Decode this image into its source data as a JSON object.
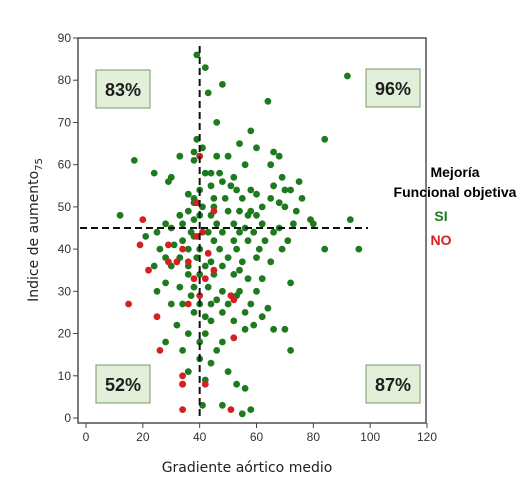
{
  "chart_data": {
    "type": "scatter",
    "xlabel": "Gradiente aórtico medio",
    "ylabel": "Indice de aumento",
    "ylabel_sub": "75",
    "xlim": [
      0,
      120
    ],
    "ylim": [
      0,
      90
    ],
    "xticks": [
      "0",
      "20",
      "40",
      "60",
      "80",
      "100",
      "120"
    ],
    "yticks": [
      "0",
      "10",
      "20",
      "30",
      "40",
      "50",
      "60",
      "70",
      "80",
      "90"
    ],
    "reference_lines": {
      "x": 40,
      "y": 45
    },
    "quadrant_labels": {
      "top_left": "83%",
      "top_right": "96%",
      "bottom_left": "52%",
      "bottom_right": "87%"
    },
    "legend": {
      "title_line1": "Mejoría",
      "title_line2": "Funcional objetiva",
      "items": [
        {
          "label": "SI",
          "color": "#1e7a1e"
        },
        {
          "label": "NO",
          "color": "#d42020"
        }
      ]
    },
    "colors": {
      "quadrant_box_fill": "#e2efd9",
      "quadrant_box_border": "#7a9a6a"
    },
    "series": [
      {
        "name": "SI",
        "color": "#1e7a1e",
        "points": [
          [
            39,
            86
          ],
          [
            42,
            83
          ],
          [
            48,
            79
          ],
          [
            43,
            77
          ],
          [
            64,
            75
          ],
          [
            92,
            81
          ],
          [
            46,
            70
          ],
          [
            39,
            66
          ],
          [
            41,
            64
          ],
          [
            38,
            63
          ],
          [
            38,
            61
          ],
          [
            17,
            61
          ],
          [
            33,
            62
          ],
          [
            46,
            62
          ],
          [
            50,
            62
          ],
          [
            58,
            68
          ],
          [
            54,
            65
          ],
          [
            60,
            64
          ],
          [
            66,
            63
          ],
          [
            68,
            62
          ],
          [
            84,
            66
          ],
          [
            24,
            58
          ],
          [
            29,
            56
          ],
          [
            30,
            57
          ],
          [
            42,
            58
          ],
          [
            44,
            58
          ],
          [
            47,
            58
          ],
          [
            48,
            56
          ],
          [
            52,
            57
          ],
          [
            56,
            60
          ],
          [
            65,
            60
          ],
          [
            69,
            57
          ],
          [
            75,
            56
          ],
          [
            40,
            54
          ],
          [
            44,
            55
          ],
          [
            51,
            55
          ],
          [
            53,
            54
          ],
          [
            58,
            54
          ],
          [
            66,
            55
          ],
          [
            70,
            54
          ],
          [
            72,
            54
          ],
          [
            76,
            52
          ],
          [
            36,
            53
          ],
          [
            38,
            52
          ],
          [
            45,
            52
          ],
          [
            49,
            52
          ],
          [
            55,
            52
          ],
          [
            60,
            53
          ],
          [
            65,
            52
          ],
          [
            68,
            51
          ],
          [
            38,
            51
          ],
          [
            41,
            50
          ],
          [
            45,
            50
          ],
          [
            50,
            49
          ],
          [
            54,
            49
          ],
          [
            58,
            49
          ],
          [
            62,
            50
          ],
          [
            70,
            50
          ],
          [
            74,
            49
          ],
          [
            12,
            48
          ],
          [
            33,
            48
          ],
          [
            36,
            49
          ],
          [
            40,
            48
          ],
          [
            44,
            48
          ],
          [
            57,
            48
          ],
          [
            60,
            48
          ],
          [
            79,
            47
          ],
          [
            93,
            47
          ],
          [
            28,
            46
          ],
          [
            34,
            46
          ],
          [
            38,
            47
          ],
          [
            46,
            46
          ],
          [
            52,
            46
          ],
          [
            56,
            45
          ],
          [
            62,
            46
          ],
          [
            68,
            45
          ],
          [
            73,
            46
          ],
          [
            80,
            46
          ],
          [
            25,
            44
          ],
          [
            30,
            45
          ],
          [
            37,
            44
          ],
          [
            43,
            44
          ],
          [
            48,
            44
          ],
          [
            54,
            44
          ],
          [
            59,
            44
          ],
          [
            66,
            44
          ],
          [
            21,
            43
          ],
          [
            34,
            42
          ],
          [
            38,
            43
          ],
          [
            45,
            42
          ],
          [
            52,
            42
          ],
          [
            57,
            42
          ],
          [
            63,
            42
          ],
          [
            71,
            42
          ],
          [
            84,
            40
          ],
          [
            96,
            40
          ],
          [
            26,
            40
          ],
          [
            31,
            41
          ],
          [
            36,
            40
          ],
          [
            40,
            40
          ],
          [
            47,
            40
          ],
          [
            53,
            40
          ],
          [
            61,
            40
          ],
          [
            69,
            40
          ],
          [
            28,
            38
          ],
          [
            33,
            38
          ],
          [
            39,
            38
          ],
          [
            44,
            37
          ],
          [
            50,
            38
          ],
          [
            55,
            37
          ],
          [
            60,
            38
          ],
          [
            65,
            37
          ],
          [
            24,
            36
          ],
          [
            30,
            36
          ],
          [
            36,
            36
          ],
          [
            42,
            36
          ],
          [
            48,
            36
          ],
          [
            54,
            35
          ],
          [
            36,
            34
          ],
          [
            40,
            34
          ],
          [
            45,
            34
          ],
          [
            52,
            34
          ],
          [
            57,
            33
          ],
          [
            62,
            33
          ],
          [
            28,
            32
          ],
          [
            33,
            31
          ],
          [
            38,
            31
          ],
          [
            43,
            31
          ],
          [
            48,
            30
          ],
          [
            54,
            30
          ],
          [
            60,
            30
          ],
          [
            72,
            32
          ],
          [
            25,
            30
          ],
          [
            37,
            29
          ],
          [
            46,
            28
          ],
          [
            53,
            29
          ],
          [
            30,
            27
          ],
          [
            34,
            27
          ],
          [
            40,
            27
          ],
          [
            44,
            27
          ],
          [
            50,
            27
          ],
          [
            58,
            27
          ],
          [
            64,
            26
          ],
          [
            38,
            25
          ],
          [
            42,
            24
          ],
          [
            48,
            25
          ],
          [
            56,
            25
          ],
          [
            62,
            24
          ],
          [
            32,
            22
          ],
          [
            44,
            23
          ],
          [
            52,
            23
          ],
          [
            59,
            22
          ],
          [
            66,
            21
          ],
          [
            70,
            21
          ],
          [
            36,
            20
          ],
          [
            42,
            20
          ],
          [
            56,
            21
          ],
          [
            28,
            18
          ],
          [
            40,
            18
          ],
          [
            48,
            18
          ],
          [
            34,
            16
          ],
          [
            46,
            16
          ],
          [
            72,
            16
          ],
          [
            40,
            14
          ],
          [
            44,
            13
          ],
          [
            36,
            11
          ],
          [
            50,
            11
          ],
          [
            42,
            9
          ],
          [
            34,
            8
          ],
          [
            53,
            8
          ],
          [
            56,
            7
          ],
          [
            41,
            3
          ],
          [
            48,
            3
          ],
          [
            58,
            2
          ],
          [
            55,
            1
          ]
        ]
      },
      {
        "name": "NO",
        "color": "#d42020",
        "points": [
          [
            40,
            62
          ],
          [
            39,
            51
          ],
          [
            45,
            49
          ],
          [
            20,
            47
          ],
          [
            41,
            44
          ],
          [
            39,
            43
          ],
          [
            19,
            41
          ],
          [
            29,
            41
          ],
          [
            34,
            40
          ],
          [
            43,
            39
          ],
          [
            29,
            37
          ],
          [
            32,
            37
          ],
          [
            36,
            37
          ],
          [
            22,
            35
          ],
          [
            45,
            35
          ],
          [
            38,
            33
          ],
          [
            42,
            33
          ],
          [
            40,
            29
          ],
          [
            51,
            29
          ],
          [
            52,
            28
          ],
          [
            15,
            27
          ],
          [
            36,
            27
          ],
          [
            25,
            24
          ],
          [
            52,
            19
          ],
          [
            26,
            16
          ],
          [
            34,
            10
          ],
          [
            34,
            8
          ],
          [
            42,
            8
          ],
          [
            34,
            2
          ],
          [
            51,
            2
          ]
        ]
      }
    ]
  }
}
